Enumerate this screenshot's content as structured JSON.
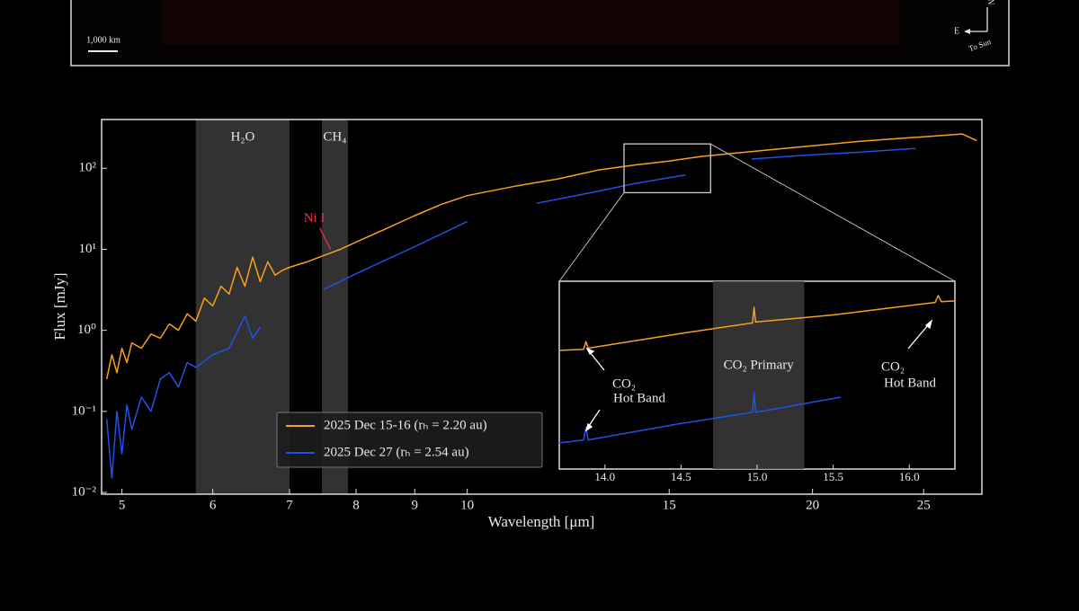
{
  "image_panel": {
    "scale_label": "1,000 km",
    "compass_east": "E",
    "compass_north": "N",
    "compass_sun": "To Sun"
  },
  "chart_data": {
    "type": "line",
    "x_label": "Wavelength [μm]",
    "y_label": "Flux [mJy]",
    "x_scale": "log",
    "y_scale": "log",
    "xlim": [
      4.8,
      28.1
    ],
    "ylim": [
      0.0095,
      400
    ],
    "xticks": [
      5,
      6,
      7,
      8,
      9,
      10,
      15,
      20,
      25
    ],
    "yticks": [
      {
        "value": 0.01,
        "label": "10⁻²"
      },
      {
        "value": 0.1,
        "label": "10⁻¹"
      },
      {
        "value": 1,
        "label": "10⁰"
      },
      {
        "value": 10,
        "label": "10¹"
      },
      {
        "value": 100,
        "label": "10²"
      }
    ],
    "bands": [
      {
        "label": "H₂O",
        "xmin": 5.8,
        "xmax": 7.0
      },
      {
        "label": "CH₄",
        "xmin": 7.47,
        "xmax": 7.87
      }
    ],
    "annotations": [
      {
        "text": "Ni I",
        "x": 7.6,
        "y": 9,
        "color": "#e8344e"
      }
    ],
    "legend": "lower center",
    "series": [
      {
        "name": "2025 Dec 15-16 (rₕ = 2.20 au)",
        "color": "#f7a21b",
        "x": [
          4.85,
          4.9,
          4.95,
          5.0,
          5.05,
          5.1,
          5.2,
          5.3,
          5.4,
          5.5,
          5.6,
          5.7,
          5.8,
          5.9,
          6.0,
          6.1,
          6.2,
          6.3,
          6.4,
          6.5,
          6.6,
          6.7,
          6.8,
          6.9,
          7.0,
          7.25,
          7.5,
          7.75,
          8,
          8.5,
          9,
          9.5,
          10,
          11,
          12,
          13,
          14,
          15,
          16,
          18,
          20,
          22,
          25,
          27,
          27.8
        ],
        "values": [
          0.25,
          0.5,
          0.3,
          0.6,
          0.4,
          0.7,
          0.6,
          0.9,
          0.8,
          1.2,
          1.0,
          1.6,
          1.3,
          2.5,
          2.0,
          3.5,
          2.8,
          6.0,
          3.5,
          8.0,
          4.0,
          7.0,
          4.8,
          5.5,
          6.0,
          7.0,
          8.4,
          10,
          12.3,
          18,
          26,
          36,
          46,
          60,
          74,
          95,
          110,
          123,
          140,
          165,
          190,
          215,
          245,
          265,
          220
        ]
      },
      {
        "name": "2025 Dec 27 (rₕ = 2.54 au)",
        "color": "#1f52e8",
        "x": [
          4.85,
          4.9,
          4.95,
          5.0,
          5.05,
          5.1,
          5.2,
          5.3,
          5.4,
          5.5,
          5.6,
          5.7,
          5.8,
          6.0,
          6.2,
          6.4,
          6.5,
          6.6,
          7.0,
          7.5,
          8,
          9,
          10,
          11,
          11.5,
          13,
          14,
          15.5,
          16.5,
          17.7,
          20,
          22,
          24.6
        ],
        "values": [
          0.08,
          0.015,
          0.1,
          0.03,
          0.12,
          0.06,
          0.15,
          0.1,
          0.25,
          0.3,
          0.2,
          0.4,
          0.35,
          0.5,
          0.6,
          1.5,
          0.8,
          1.1,
          null,
          3.2,
          5,
          10.8,
          22,
          null,
          37,
          52,
          65,
          83,
          null,
          130,
          147,
          158,
          176
        ]
      }
    ],
    "inset": {
      "xlim": [
        13.7,
        16.3
      ],
      "ylim": [
        50,
        200
      ],
      "xticks": [
        {
          "value": 14,
          "label": "14.0"
        },
        14.5,
        {
          "value": 15,
          "label": "15.0"
        },
        15.5,
        {
          "value": 16,
          "label": "16.0"
        }
      ],
      "bands": [
        {
          "label": "CO₂ Primary",
          "xmin": 14.71,
          "xmax": 15.31
        }
      ],
      "annotations": [
        {
          "lines": [
            "CO₂",
            "Hot Band"
          ]
        },
        {
          "lines": [
            "CO₂",
            "Hot Band"
          ]
        }
      ],
      "series": [
        {
          "x": [
            13.7,
            13.86,
            13.875,
            13.89,
            14.5,
            14.97,
            14.98,
            14.99,
            15.5,
            16.17,
            16.19,
            16.21,
            16.3
          ],
          "values": [
            120,
            121,
            128,
            122,
            136,
            147,
            165,
            148,
            156,
            171,
            180,
            172,
            173
          ]
        },
        {
          "x": [
            13.7,
            13.86,
            13.875,
            13.89,
            14.5,
            14.97,
            14.98,
            14.99,
            15.55
          ],
          "values": [
            60.6,
            62,
            68,
            62,
            70,
            76,
            88,
            76,
            85
          ]
        }
      ]
    }
  }
}
